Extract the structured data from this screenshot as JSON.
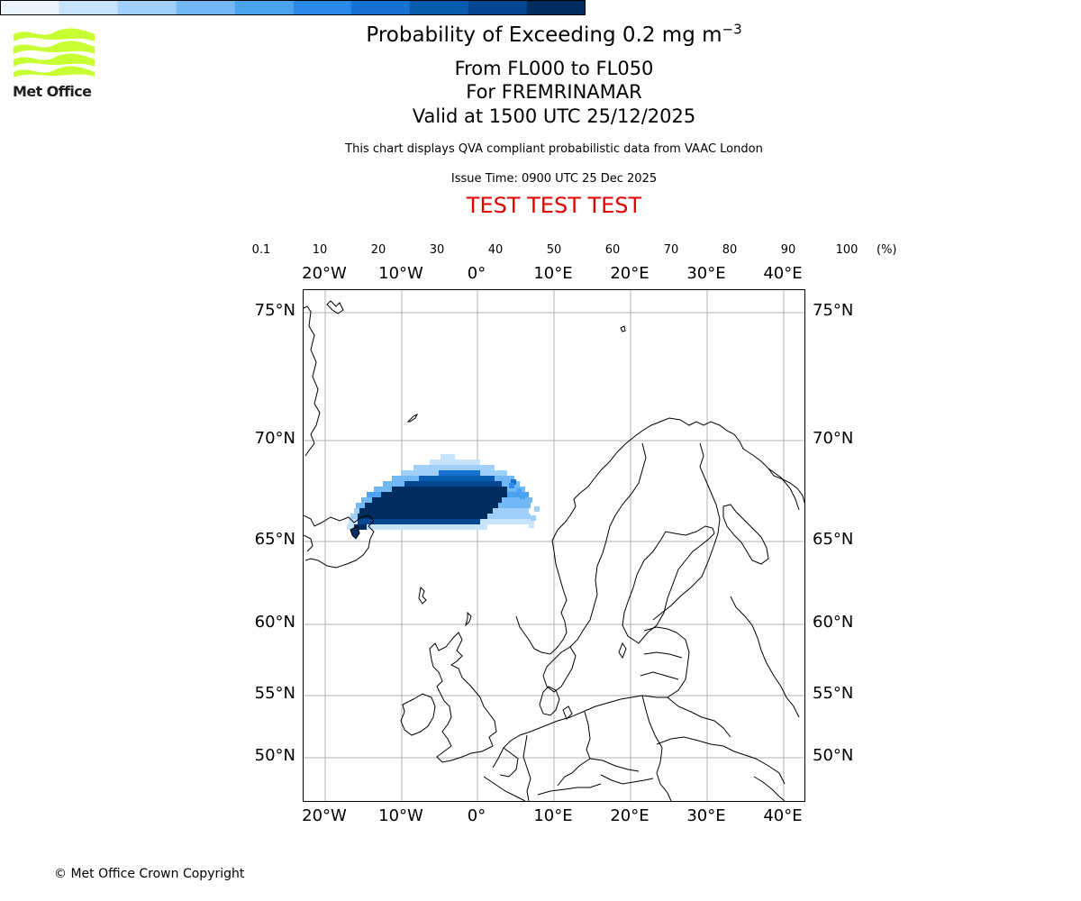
{
  "logo": {
    "text": "Met Office",
    "color": "#c8ff32"
  },
  "header": {
    "title_main": "Probability of Exceeding 0.2 mg m",
    "title_exp": "−3",
    "line1": "From FL000 to FL050",
    "line2": "For FREMRINAMAR",
    "line3": "Valid at 1500 UTC 25/12/2025",
    "disclaimer": "This chart displays QVA compliant probabilistic data from VAAC London",
    "issue_time": "Issue Time: 0900 UTC 25 Dec 2025",
    "test_banner": "TEST TEST TEST",
    "test_color": "#e00000"
  },
  "colorbar": {
    "ticks": [
      "0.1",
      "10",
      "20",
      "30",
      "40",
      "50",
      "60",
      "70",
      "80",
      "90",
      "100"
    ],
    "unit": "(%)",
    "colors": [
      "#eaf4fe",
      "#c7e3fc",
      "#a0cff9",
      "#72b8f5",
      "#4aa2f1",
      "#2a8aea",
      "#1572d0",
      "#095bb0",
      "#044790",
      "#002d60"
    ]
  },
  "map": {
    "lon_labels": [
      "20°W",
      "10°W",
      "0°",
      "10°E",
      "20°E",
      "30°E",
      "40°E"
    ],
    "lat_labels": [
      "75°N",
      "70°N",
      "65°N",
      "60°N",
      "55°N",
      "50°N"
    ],
    "lon_values": [
      -20,
      -10,
      0,
      10,
      20,
      30,
      40
    ],
    "lat_values": [
      75,
      70,
      65,
      60,
      55,
      50
    ],
    "plume": {
      "source": "Iceland (Fremrinamar)",
      "max_probability_band": "90-100"
    }
  },
  "footer": {
    "copyright": "© Met Office Crown Copyright"
  }
}
